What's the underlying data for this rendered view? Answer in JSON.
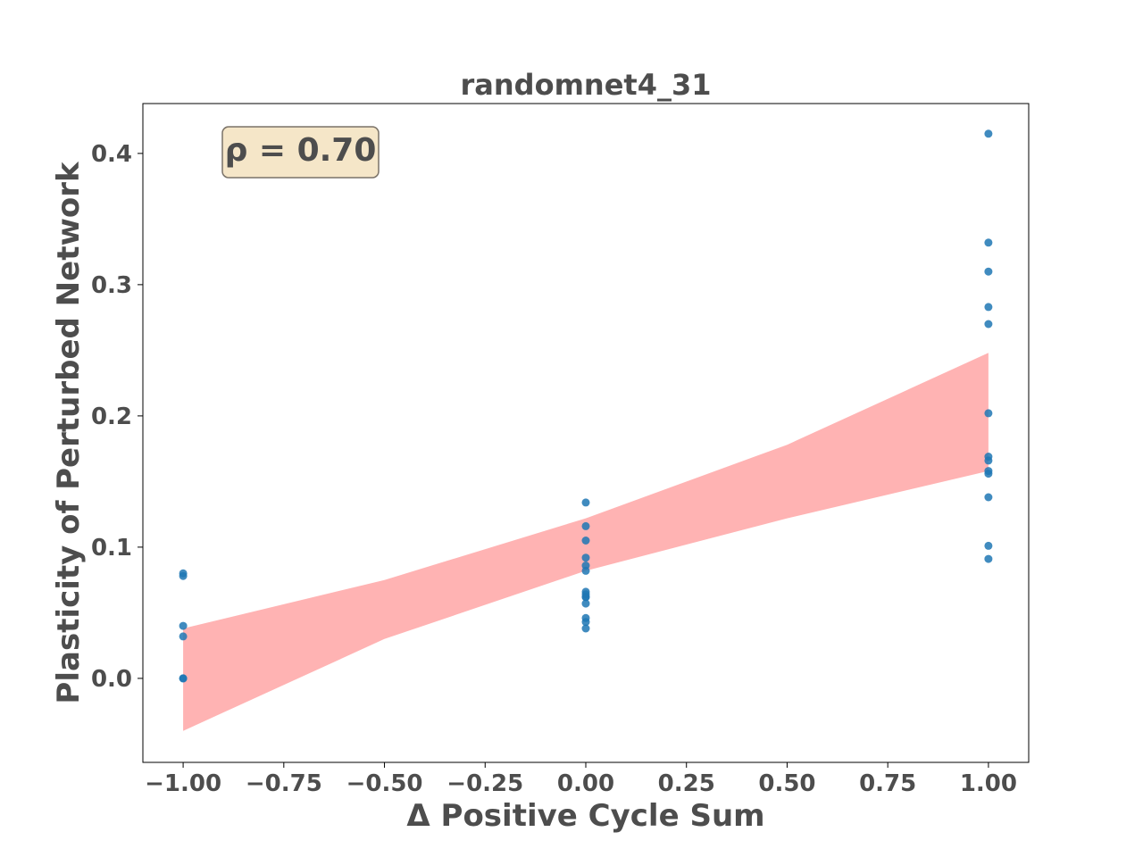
{
  "chart_data": {
    "type": "scatter",
    "title": "randomnet4_31",
    "xlabel": "Δ Positive Cycle Sum",
    "ylabel": "Plasticity of Perturbed Network",
    "annotation": "ρ = 0.70",
    "xlim": [
      -1.1,
      1.1
    ],
    "ylim": [
      -0.064,
      0.438
    ],
    "xticks": [
      -1.0,
      -0.75,
      -0.5,
      -0.25,
      0.0,
      0.25,
      0.5,
      0.75,
      1.0
    ],
    "xtick_labels": [
      "−1.00",
      "−0.75",
      "−0.50",
      "−0.25",
      "0.00",
      "0.25",
      "0.50",
      "0.75",
      "1.00"
    ],
    "yticks": [
      0.0,
      0.1,
      0.2,
      0.3,
      0.4
    ],
    "ytick_labels": [
      "0.0",
      "0.1",
      "0.2",
      "0.3",
      "0.4"
    ],
    "grid": false,
    "colors": {
      "points": "#1f77b4",
      "band": "#ff9999",
      "text": "#4d4d4d",
      "annotation_bg": "#f5e6c8"
    },
    "x": [
      -1,
      -1,
      -1,
      -1,
      -1,
      -1,
      0,
      0,
      0,
      0,
      0,
      0,
      0,
      0,
      0,
      0,
      0,
      0,
      0,
      0,
      1,
      1,
      1,
      1,
      1,
      1,
      1,
      1,
      1,
      1,
      1,
      1,
      1
    ],
    "y": [
      0.08,
      0.078,
      0.04,
      0.032,
      0.0,
      0.0,
      0.134,
      0.116,
      0.105,
      0.092,
      0.086,
      0.082,
      0.066,
      0.064,
      0.062,
      0.057,
      0.046,
      0.043,
      0.038,
      0.062,
      0.415,
      0.332,
      0.31,
      0.283,
      0.27,
      0.202,
      0.169,
      0.166,
      0.158,
      0.156,
      0.138,
      0.101,
      0.091
    ],
    "confidence_band": {
      "x": [
        -1.0,
        -0.5,
        0.0,
        0.5,
        1.0
      ],
      "lower": [
        -0.04,
        0.03,
        0.082,
        0.122,
        0.158
      ],
      "upper": [
        0.038,
        0.075,
        0.122,
        0.178,
        0.248
      ]
    }
  }
}
